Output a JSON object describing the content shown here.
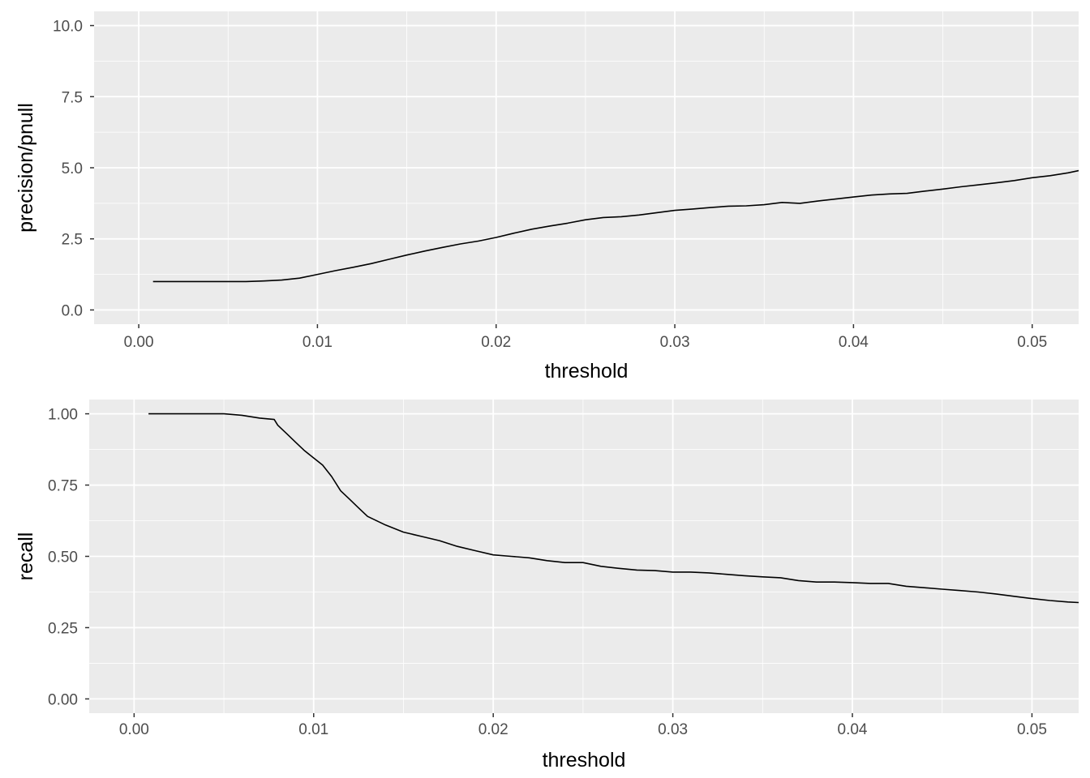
{
  "chart_data": [
    {
      "type": "line",
      "title": "",
      "xlabel": "threshold",
      "ylabel": "precision/pnull",
      "xlim": [
        -0.0025,
        0.0526
      ],
      "ylim": [
        -0.5,
        10.5
      ],
      "x_ticks": [
        "0.00",
        "0.01",
        "0.02",
        "0.03",
        "0.04",
        "0.05"
      ],
      "y_ticks": [
        "0.0",
        "2.5",
        "5.0",
        "7.5",
        "10.0"
      ],
      "x_tick_values": [
        0,
        0.01,
        0.02,
        0.03,
        0.04,
        0.05
      ],
      "y_tick_values": [
        0,
        2.5,
        5,
        7.5,
        10
      ],
      "grid": true,
      "line_color": "#000000",
      "x": [
        0.0008,
        0.002,
        0.004,
        0.006,
        0.007,
        0.008,
        0.009,
        0.01,
        0.011,
        0.012,
        0.013,
        0.014,
        0.015,
        0.016,
        0.017,
        0.018,
        0.019,
        0.02,
        0.021,
        0.022,
        0.023,
        0.024,
        0.025,
        0.026,
        0.027,
        0.028,
        0.029,
        0.03,
        0.031,
        0.032,
        0.033,
        0.034,
        0.035,
        0.036,
        0.037,
        0.038,
        0.039,
        0.04,
        0.041,
        0.042,
        0.043,
        0.044,
        0.045,
        0.046,
        0.047,
        0.048,
        0.049,
        0.05,
        0.051,
        0.052,
        0.0526
      ],
      "y": [
        1.0,
        1.0,
        1.0,
        1.0,
        1.02,
        1.05,
        1.12,
        1.25,
        1.38,
        1.5,
        1.63,
        1.78,
        1.93,
        2.07,
        2.2,
        2.32,
        2.42,
        2.55,
        2.7,
        2.84,
        2.95,
        3.05,
        3.17,
        3.25,
        3.28,
        3.34,
        3.42,
        3.5,
        3.55,
        3.6,
        3.65,
        3.66,
        3.7,
        3.78,
        3.75,
        3.83,
        3.9,
        3.97,
        4.04,
        4.08,
        4.1,
        4.18,
        4.25,
        4.33,
        4.4,
        4.47,
        4.55,
        4.65,
        4.72,
        4.82,
        4.9
      ]
    },
    {
      "type": "line",
      "title": "",
      "xlabel": "threshold",
      "ylabel": "recall",
      "xlim": [
        -0.0025,
        0.0526
      ],
      "ylim": [
        -0.05,
        1.05
      ],
      "x_ticks": [
        "0.00",
        "0.01",
        "0.02",
        "0.03",
        "0.04",
        "0.05"
      ],
      "y_ticks": [
        "0.00",
        "0.25",
        "0.50",
        "0.75",
        "1.00"
      ],
      "x_tick_values": [
        0,
        0.01,
        0.02,
        0.03,
        0.04,
        0.05
      ],
      "y_tick_values": [
        0,
        0.25,
        0.5,
        0.75,
        1.0
      ],
      "grid": true,
      "line_color": "#000000",
      "x": [
        0.0008,
        0.002,
        0.004,
        0.005,
        0.006,
        0.007,
        0.0078,
        0.008,
        0.0085,
        0.009,
        0.0095,
        0.01,
        0.0105,
        0.011,
        0.0115,
        0.012,
        0.0125,
        0.013,
        0.014,
        0.015,
        0.016,
        0.017,
        0.018,
        0.019,
        0.02,
        0.021,
        0.022,
        0.023,
        0.024,
        0.025,
        0.026,
        0.027,
        0.028,
        0.029,
        0.03,
        0.031,
        0.032,
        0.033,
        0.034,
        0.035,
        0.036,
        0.037,
        0.038,
        0.039,
        0.04,
        0.041,
        0.042,
        0.043,
        0.044,
        0.045,
        0.046,
        0.047,
        0.048,
        0.049,
        0.05,
        0.051,
        0.052,
        0.0526
      ],
      "y": [
        1.0,
        1.0,
        1.0,
        1.0,
        0.995,
        0.985,
        0.98,
        0.96,
        0.93,
        0.9,
        0.87,
        0.845,
        0.82,
        0.78,
        0.73,
        0.7,
        0.67,
        0.64,
        0.61,
        0.585,
        0.57,
        0.555,
        0.535,
        0.52,
        0.505,
        0.5,
        0.495,
        0.485,
        0.478,
        0.478,
        0.465,
        0.458,
        0.452,
        0.45,
        0.445,
        0.445,
        0.442,
        0.437,
        0.432,
        0.428,
        0.425,
        0.415,
        0.41,
        0.41,
        0.408,
        0.405,
        0.405,
        0.395,
        0.39,
        0.385,
        0.38,
        0.375,
        0.368,
        0.36,
        0.352,
        0.345,
        0.34,
        0.338
      ]
    }
  ]
}
